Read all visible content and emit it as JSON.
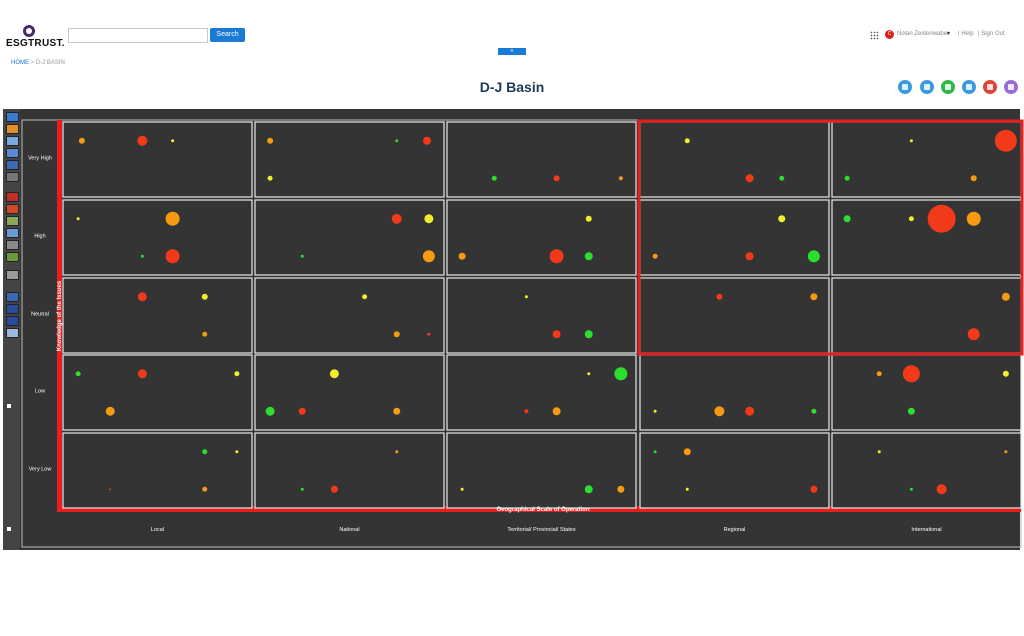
{
  "header": {
    "logo_text": "ESGTRUST.",
    "search_placeholder": "",
    "search_button": "Search",
    "collapse_label": "≡",
    "user_initial": "C",
    "user_name": "Nolan Zeidenwaber",
    "caret": "▾",
    "help": "| Help",
    "signout": "| Sign Out"
  },
  "breadcrumb": {
    "home": "HOME",
    "separator": " > ",
    "current": "D-J BASIN"
  },
  "page_title": "D-J Basin",
  "toolbar_icons": [
    "globe-icon",
    "network-icon",
    "document-check-icon",
    "list-icon",
    "user-group-icon",
    "menu-icon"
  ],
  "toolbar_icon_colors": [
    "#3a9ae0",
    "#3a9ae0",
    "#2fb84a",
    "#3a9ae0",
    "#e0453a",
    "#9a6ad8"
  ],
  "colors": {
    "panel_bg": "#343434",
    "cell_border": "#e8e8e8",
    "highlight": "#e81d1d",
    "red": "#f23a1b",
    "orange": "#f59a12",
    "yellow": "#f3ee2b",
    "green": "#2cdf2c"
  },
  "chart_data": {
    "type": "scatter",
    "xlabel": "Geographical Scale of Operation",
    "ylabel": "Knowledge of the Issues",
    "x_categories": [
      "Local",
      "National",
      "Territorial/ Provincial/ States",
      "Regional",
      "International"
    ],
    "y_categories": [
      "Very High",
      "High",
      "Neutral",
      "Low",
      "Very Low"
    ],
    "highlight_region": {
      "columns": [
        "Regional",
        "International"
      ],
      "rows": [
        "Very High",
        "High",
        "Neutral"
      ]
    },
    "cells": [
      {
        "row": "Very High",
        "col": "Local",
        "points": [
          {
            "fx": 0.1,
            "fy": 0.25,
            "size": 3,
            "color": "orange"
          },
          {
            "fx": 0.42,
            "fy": 0.25,
            "size": 5,
            "color": "red"
          },
          {
            "fx": 0.58,
            "fy": 0.25,
            "size": 1.5,
            "color": "yellow"
          }
        ]
      },
      {
        "row": "Very High",
        "col": "National",
        "points": [
          {
            "fx": 0.08,
            "fy": 0.25,
            "size": 3,
            "color": "orange"
          },
          {
            "fx": 0.75,
            "fy": 0.25,
            "size": 1.5,
            "color": "green"
          },
          {
            "fx": 0.91,
            "fy": 0.25,
            "size": 4,
            "color": "red"
          },
          {
            "fx": 0.08,
            "fy": 0.75,
            "size": 2.5,
            "color": "yellow"
          }
        ]
      },
      {
        "row": "Very High",
        "col": "Territorial/ Provincial/ States",
        "points": [
          {
            "fx": 0.25,
            "fy": 0.75,
            "size": 2.5,
            "color": "green"
          },
          {
            "fx": 0.58,
            "fy": 0.75,
            "size": 3,
            "color": "red"
          },
          {
            "fx": 0.92,
            "fy": 0.75,
            "size": 2,
            "color": "orange"
          }
        ]
      },
      {
        "row": "Very High",
        "col": "Regional",
        "points": [
          {
            "fx": 0.25,
            "fy": 0.25,
            "size": 2.5,
            "color": "yellow"
          },
          {
            "fx": 0.58,
            "fy": 0.75,
            "size": 4,
            "color": "red"
          },
          {
            "fx": 0.75,
            "fy": 0.75,
            "size": 2.5,
            "color": "green"
          }
        ]
      },
      {
        "row": "Very High",
        "col": "International",
        "points": [
          {
            "fx": 0.42,
            "fy": 0.25,
            "size": 1.5,
            "color": "yellow"
          },
          {
            "fx": 0.92,
            "fy": 0.25,
            "size": 11,
            "color": "red"
          },
          {
            "fx": 0.08,
            "fy": 0.75,
            "size": 2.5,
            "color": "green"
          },
          {
            "fx": 0.75,
            "fy": 0.75,
            "size": 3,
            "color": "orange"
          }
        ]
      },
      {
        "row": "High",
        "col": "Local",
        "points": [
          {
            "fx": 0.08,
            "fy": 0.25,
            "size": 1.5,
            "color": "yellow"
          },
          {
            "fx": 0.58,
            "fy": 0.25,
            "size": 7,
            "color": "orange"
          },
          {
            "fx": 0.42,
            "fy": 0.75,
            "size": 1.5,
            "color": "green"
          },
          {
            "fx": 0.58,
            "fy": 0.75,
            "size": 7,
            "color": "red"
          }
        ]
      },
      {
        "row": "High",
        "col": "National",
        "points": [
          {
            "fx": 0.75,
            "fy": 0.25,
            "size": 5,
            "color": "red"
          },
          {
            "fx": 0.92,
            "fy": 0.25,
            "size": 4.5,
            "color": "yellow"
          },
          {
            "fx": 0.25,
            "fy": 0.75,
            "size": 1.5,
            "color": "green"
          },
          {
            "fx": 0.92,
            "fy": 0.75,
            "size": 6,
            "color": "orange"
          }
        ]
      },
      {
        "row": "High",
        "col": "Territorial/ Provincial/ States",
        "points": [
          {
            "fx": 0.75,
            "fy": 0.25,
            "size": 3,
            "color": "yellow"
          },
          {
            "fx": 0.08,
            "fy": 0.75,
            "size": 3.5,
            "color": "orange"
          },
          {
            "fx": 0.58,
            "fy": 0.75,
            "size": 7,
            "color": "red"
          },
          {
            "fx": 0.75,
            "fy": 0.75,
            "size": 4,
            "color": "green"
          }
        ]
      },
      {
        "row": "High",
        "col": "Regional",
        "points": [
          {
            "fx": 0.75,
            "fy": 0.25,
            "size": 3.5,
            "color": "yellow"
          },
          {
            "fx": 0.08,
            "fy": 0.75,
            "size": 2.5,
            "color": "orange"
          },
          {
            "fx": 0.58,
            "fy": 0.75,
            "size": 4,
            "color": "red"
          },
          {
            "fx": 0.92,
            "fy": 0.75,
            "size": 6,
            "color": "green"
          }
        ]
      },
      {
        "row": "High",
        "col": "International",
        "points": [
          {
            "fx": 0.08,
            "fy": 0.25,
            "size": 3.5,
            "color": "green"
          },
          {
            "fx": 0.42,
            "fy": 0.25,
            "size": 2.5,
            "color": "yellow"
          },
          {
            "fx": 0.58,
            "fy": 0.25,
            "size": 14,
            "color": "red"
          },
          {
            "fx": 0.75,
            "fy": 0.25,
            "size": 7,
            "color": "orange"
          }
        ]
      },
      {
        "row": "Neutral",
        "col": "Local",
        "points": [
          {
            "fx": 0.42,
            "fy": 0.25,
            "size": 4.5,
            "color": "red"
          },
          {
            "fx": 0.75,
            "fy": 0.25,
            "size": 3,
            "color": "yellow"
          },
          {
            "fx": 0.75,
            "fy": 0.75,
            "size": 2.5,
            "color": "orange"
          }
        ]
      },
      {
        "row": "Neutral",
        "col": "National",
        "points": [
          {
            "fx": 0.58,
            "fy": 0.25,
            "size": 2.5,
            "color": "yellow"
          },
          {
            "fx": 0.75,
            "fy": 0.75,
            "size": 3,
            "color": "orange"
          },
          {
            "fx": 0.92,
            "fy": 0.75,
            "size": 1.5,
            "color": "red"
          }
        ]
      },
      {
        "row": "Neutral",
        "col": "Territorial/ Provincial/ States",
        "points": [
          {
            "fx": 0.42,
            "fy": 0.25,
            "size": 1.5,
            "color": "yellow"
          },
          {
            "fx": 0.58,
            "fy": 0.75,
            "size": 4,
            "color": "red"
          },
          {
            "fx": 0.75,
            "fy": 0.75,
            "size": 4,
            "color": "green"
          }
        ]
      },
      {
        "row": "Neutral",
        "col": "Regional",
        "points": [
          {
            "fx": 0.42,
            "fy": 0.25,
            "size": 3,
            "color": "red"
          },
          {
            "fx": 0.92,
            "fy": 0.25,
            "size": 3.5,
            "color": "orange"
          }
        ]
      },
      {
        "row": "Neutral",
        "col": "International",
        "points": [
          {
            "fx": 0.92,
            "fy": 0.25,
            "size": 4,
            "color": "orange"
          },
          {
            "fx": 0.75,
            "fy": 0.75,
            "size": 6,
            "color": "red"
          }
        ]
      },
      {
        "row": "Low",
        "col": "Local",
        "points": [
          {
            "fx": 0.08,
            "fy": 0.25,
            "size": 2.5,
            "color": "green"
          },
          {
            "fx": 0.42,
            "fy": 0.25,
            "size": 4.5,
            "color": "red"
          },
          {
            "fx": 0.92,
            "fy": 0.25,
            "size": 2.5,
            "color": "yellow"
          },
          {
            "fx": 0.25,
            "fy": 0.75,
            "size": 4.5,
            "color": "orange"
          }
        ]
      },
      {
        "row": "Low",
        "col": "National",
        "points": [
          {
            "fx": 0.42,
            "fy": 0.25,
            "size": 4.5,
            "color": "yellow"
          },
          {
            "fx": 0.08,
            "fy": 0.75,
            "size": 4.5,
            "color": "green"
          },
          {
            "fx": 0.25,
            "fy": 0.75,
            "size": 3.5,
            "color": "red"
          },
          {
            "fx": 0.75,
            "fy": 0.75,
            "size": 3.5,
            "color": "orange"
          }
        ]
      },
      {
        "row": "Low",
        "col": "Territorial/ Provincial/ States",
        "points": [
          {
            "fx": 0.75,
            "fy": 0.25,
            "size": 1.5,
            "color": "yellow"
          },
          {
            "fx": 0.92,
            "fy": 0.25,
            "size": 6.5,
            "color": "green"
          },
          {
            "fx": 0.42,
            "fy": 0.75,
            "size": 2,
            "color": "red"
          },
          {
            "fx": 0.58,
            "fy": 0.75,
            "size": 4,
            "color": "orange"
          }
        ]
      },
      {
        "row": "Low",
        "col": "Regional",
        "points": [
          {
            "fx": 0.08,
            "fy": 0.75,
            "size": 1.5,
            "color": "yellow"
          },
          {
            "fx": 0.42,
            "fy": 0.75,
            "size": 5,
            "color": "orange"
          },
          {
            "fx": 0.58,
            "fy": 0.75,
            "size": 4.5,
            "color": "red"
          },
          {
            "fx": 0.92,
            "fy": 0.75,
            "size": 2.5,
            "color": "green"
          }
        ]
      },
      {
        "row": "Low",
        "col": "International",
        "points": [
          {
            "fx": 0.25,
            "fy": 0.25,
            "size": 2.5,
            "color": "orange"
          },
          {
            "fx": 0.42,
            "fy": 0.25,
            "size": 8.5,
            "color": "red"
          },
          {
            "fx": 0.92,
            "fy": 0.25,
            "size": 3,
            "color": "yellow"
          },
          {
            "fx": 0.42,
            "fy": 0.75,
            "size": 3.5,
            "color": "green"
          }
        ]
      },
      {
        "row": "Very Low",
        "col": "Local",
        "points": [
          {
            "fx": 0.75,
            "fy": 0.25,
            "size": 2.5,
            "color": "green"
          },
          {
            "fx": 0.92,
            "fy": 0.25,
            "size": 1.5,
            "color": "yellow"
          },
          {
            "fx": 0.25,
            "fy": 0.75,
            "size": 1,
            "color": "red"
          },
          {
            "fx": 0.75,
            "fy": 0.75,
            "size": 2.5,
            "color": "orange"
          }
        ]
      },
      {
        "row": "Very Low",
        "col": "National",
        "points": [
          {
            "fx": 0.75,
            "fy": 0.25,
            "size": 1.5,
            "color": "orange"
          },
          {
            "fx": 0.25,
            "fy": 0.75,
            "size": 1.5,
            "color": "green"
          },
          {
            "fx": 0.42,
            "fy": 0.75,
            "size": 3.5,
            "color": "red"
          }
        ]
      },
      {
        "row": "Very Low",
        "col": "Territorial/ Provincial/ States",
        "points": [
          {
            "fx": 0.08,
            "fy": 0.75,
            "size": 1.5,
            "color": "yellow"
          },
          {
            "fx": 0.75,
            "fy": 0.75,
            "size": 4,
            "color": "green"
          },
          {
            "fx": 0.92,
            "fy": 0.75,
            "size": 3.5,
            "color": "orange"
          }
        ]
      },
      {
        "row": "Very Low",
        "col": "Regional",
        "points": [
          {
            "fx": 0.08,
            "fy": 0.25,
            "size": 1.5,
            "color": "green"
          },
          {
            "fx": 0.25,
            "fy": 0.25,
            "size": 3.5,
            "color": "orange"
          },
          {
            "fx": 0.25,
            "fy": 0.75,
            "size": 1.5,
            "color": "yellow"
          },
          {
            "fx": 0.92,
            "fy": 0.75,
            "size": 3.5,
            "color": "red"
          }
        ]
      },
      {
        "row": "Very Low",
        "col": "International",
        "points": [
          {
            "fx": 0.25,
            "fy": 0.25,
            "size": 1.5,
            "color": "yellow"
          },
          {
            "fx": 0.92,
            "fy": 0.25,
            "size": 1.5,
            "color": "orange"
          },
          {
            "fx": 0.42,
            "fy": 0.75,
            "size": 1.5,
            "color": "green"
          },
          {
            "fx": 0.58,
            "fy": 0.75,
            "size": 5,
            "color": "red"
          }
        ]
      }
    ]
  }
}
